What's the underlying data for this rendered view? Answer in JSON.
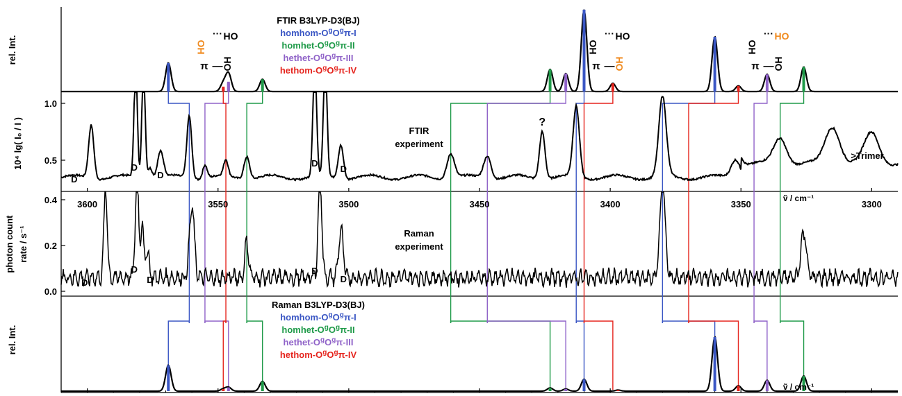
{
  "colors": {
    "blue": "#3a56c4",
    "green": "#1e9a48",
    "purple": "#8f62c8",
    "red": "#e5241d",
    "orange": "#f08a1e",
    "black": "#000000"
  },
  "legend": [
    {
      "text": "homhom-O",
      "sup": "g",
      "mid": "O",
      "sup2": "g",
      "tail": "π-I",
      "color": "blue"
    },
    {
      "text": "homhet-O",
      "sup": "g",
      "mid": "O",
      "sup2": "g",
      "tail": "π-II",
      "color": "green"
    },
    {
      "text": "hethet-O",
      "sup": "g",
      "mid": "O",
      "sup2": "g",
      "tail": "π-III",
      "color": "purple"
    },
    {
      "text": "hethom-O",
      "sup": "g",
      "mid": "O",
      "sup2": "g",
      "tail": "π-IV",
      "color": "red"
    }
  ],
  "structure_labels": {
    "ho": "HO",
    "oh": "OH",
    "dots": "···",
    "pi": "π",
    "dash": "—"
  },
  "chart_data": [
    {
      "panel": "ftir-calc",
      "type": "line",
      "title": "FTIR B3LYP-D3(BJ)",
      "ylabel": "rel. Int.",
      "sticks": [
        {
          "x": 3569,
          "height": 0.35,
          "color": "blue"
        },
        {
          "x": 3546,
          "height": 0.12,
          "color": "purple"
        },
        {
          "x": 3548,
          "height": 0.04,
          "color": "blue"
        },
        {
          "x": 3546,
          "height": 0.1,
          "color": "purple"
        },
        {
          "x": 3548,
          "height": 0.06,
          "color": "red"
        },
        {
          "x": 3533,
          "height": 0.15,
          "color": "green"
        },
        {
          "x": 3423,
          "height": 0.27,
          "color": "green"
        },
        {
          "x": 3417,
          "height": 0.22,
          "color": "purple"
        },
        {
          "x": 3410,
          "height": 1.0,
          "color": "blue"
        },
        {
          "x": 3399,
          "height": 0.1,
          "color": "red"
        },
        {
          "x": 3360,
          "height": 0.67,
          "color": "blue"
        },
        {
          "x": 3351,
          "height": 0.07,
          "color": "red"
        },
        {
          "x": 3340,
          "height": 0.21,
          "color": "purple"
        },
        {
          "x": 3326,
          "height": 0.3,
          "color": "green"
        }
      ]
    },
    {
      "panel": "ftir-exp",
      "type": "line",
      "label1": "FTIR",
      "label2": "experiment",
      "ylabel": "10⁴ lg( I₀ / I )",
      "yticks": [
        "0.5",
        "1.0"
      ],
      "xlim": [
        3610,
        3290
      ],
      "annotations": {
        "question": "?",
        "trimer": ">Trimer",
        "dimer": "D"
      },
      "peaks": [
        {
          "x": 3598.5,
          "y": 0.82,
          "w": 1.4
        },
        {
          "x": 3581.5,
          "y": 1.35,
          "w": 0.9
        },
        {
          "x": 3578.5,
          "y": 1.35,
          "w": 0.9
        },
        {
          "x": 3576,
          "y": 0.45,
          "w": 1.2
        },
        {
          "x": 3572,
          "y": 0.58,
          "w": 1.6
        },
        {
          "x": 3561,
          "y": 0.9,
          "w": 1.3
        },
        {
          "x": 3555,
          "y": 0.47,
          "w": 1.2
        },
        {
          "x": 3547,
          "y": 0.49,
          "w": 1.2
        },
        {
          "x": 3539,
          "y": 0.55,
          "w": 1.5
        },
        {
          "x": 3513,
          "y": 1.35,
          "w": 1.0
        },
        {
          "x": 3509,
          "y": 1.35,
          "w": 1.0
        },
        {
          "x": 3503,
          "y": 0.65,
          "w": 1.4
        },
        {
          "x": 3461,
          "y": 0.57,
          "w": 2.0
        },
        {
          "x": 3447,
          "y": 0.55,
          "w": 2.0
        },
        {
          "x": 3426,
          "y": 0.77,
          "w": 1.5
        },
        {
          "x": 3413,
          "y": 0.97,
          "w": 1.7
        },
        {
          "x": 3380,
          "y": 1.05,
          "w": 2.0
        },
        {
          "x": 3352,
          "y": 0.52,
          "w": 2.5
        },
        {
          "x": 3335,
          "y": 0.58,
          "w": 3.5
        },
        {
          "x": 3315,
          "y": 0.68,
          "w": 4.0
        },
        {
          "x": 3300,
          "y": 0.62,
          "w": 4.0
        }
      ],
      "baseline": 0.35
    },
    {
      "panel": "raman-exp",
      "type": "line",
      "label1": "Raman",
      "label2": "experiment",
      "ylabel1": "photon count",
      "ylabel2": "rate / s⁻¹",
      "yticks": [
        "0.0",
        "0.2",
        "0.4"
      ],
      "xticks": [
        "3600",
        "3550",
        "3500",
        "3450",
        "3400",
        "3350",
        "3300"
      ],
      "xlabel": "ṽ / cm⁻¹",
      "annotations": {
        "dimer": "D"
      },
      "peaks": [
        {
          "x": 3593,
          "y": 0.39,
          "w": 0.9
        },
        {
          "x": 3581,
          "y": 0.45,
          "w": 0.9
        },
        {
          "x": 3579,
          "y": 0.24,
          "w": 0.8
        },
        {
          "x": 3577,
          "y": 0.12,
          "w": 0.9
        },
        {
          "x": 3560,
          "y": 0.31,
          "w": 1.3
        },
        {
          "x": 3539,
          "y": 0.16,
          "w": 1.0
        },
        {
          "x": 3511,
          "y": 0.45,
          "w": 1.0
        },
        {
          "x": 3503,
          "y": 0.21,
          "w": 1.2
        },
        {
          "x": 3380,
          "y": 0.42,
          "w": 1.4
        },
        {
          "x": 3326,
          "y": 0.2,
          "w": 1.5
        }
      ]
    },
    {
      "panel": "raman-calc",
      "type": "line",
      "title": "Raman B3LYP-D3(BJ)",
      "ylabel": "rel. Int.",
      "xticks": [
        "3600",
        "3550",
        "3500",
        "3450",
        "3400",
        "3350",
        "3300"
      ],
      "xlabel": "ṽ / cm⁻¹",
      "sticks": [
        {
          "x": 3569,
          "height": 0.48,
          "color": "blue"
        },
        {
          "x": 3546,
          "height": 0.07,
          "color": "purple"
        },
        {
          "x": 3548,
          "height": 0.04,
          "color": "red"
        },
        {
          "x": 3533,
          "height": 0.18,
          "color": "green"
        },
        {
          "x": 3423,
          "height": 0.06,
          "color": "green"
        },
        {
          "x": 3417,
          "height": 0.04,
          "color": "purple"
        },
        {
          "x": 3410,
          "height": 0.22,
          "color": "blue"
        },
        {
          "x": 3397,
          "height": 0.02,
          "color": "red"
        },
        {
          "x": 3360,
          "height": 1.0,
          "color": "blue"
        },
        {
          "x": 3351,
          "height": 0.1,
          "color": "red"
        },
        {
          "x": 3340,
          "height": 0.2,
          "color": "purple"
        },
        {
          "x": 3326,
          "height": 0.28,
          "color": "green"
        }
      ]
    }
  ],
  "connectors": [
    {
      "top": 3569,
      "bottom": 3561,
      "color": "blue"
    },
    {
      "top": 3546,
      "bottom": 3555,
      "color": "purple"
    },
    {
      "top": 3548,
      "bottom": 3547,
      "color": "red"
    },
    {
      "top": 3533,
      "bottom": 3539,
      "color": "green"
    },
    {
      "top": 3423,
      "bottom": 3461,
      "color": "green"
    },
    {
      "top": 3417,
      "bottom": 3447,
      "color": "purple"
    },
    {
      "top": 3410,
      "bottom": 3413,
      "color": "blue"
    },
    {
      "top": 3399,
      "bottom": 3410,
      "color": "red"
    },
    {
      "top": 3360,
      "bottom": 3380,
      "color": "blue"
    },
    {
      "top": 3351,
      "bottom": 3370,
      "color": "red"
    },
    {
      "top": 3340,
      "bottom": 3345,
      "color": "purple"
    },
    {
      "top": 3326,
      "bottom": 3335,
      "color": "green"
    }
  ]
}
